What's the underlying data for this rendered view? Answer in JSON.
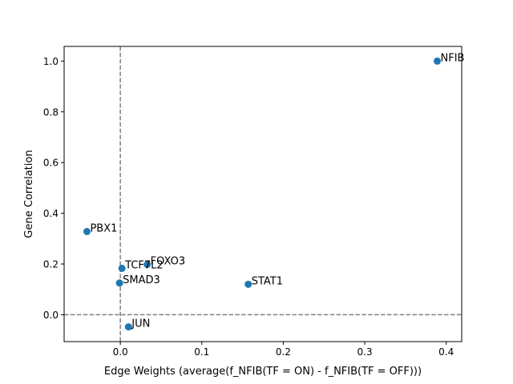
{
  "chart_data": {
    "type": "scatter",
    "title": "",
    "xlabel": "Edge Weights (average(f_NFIB(TF = ON) - f_NFIB(TF = OFF)))",
    "ylabel": "Gene Correlation",
    "xlim": [
      -0.069,
      0.419
    ],
    "ylim": [
      -0.106,
      1.058
    ],
    "xticks": [
      0.0,
      0.1,
      0.2,
      0.3,
      0.4
    ],
    "xtick_labels": [
      "0.0",
      "0.1",
      "0.2",
      "0.3",
      "0.4"
    ],
    "yticks": [
      0.0,
      0.2,
      0.4,
      0.6,
      0.8,
      1.0
    ],
    "ytick_labels": [
      "0.0",
      "0.2",
      "0.4",
      "0.6",
      "0.8",
      "1.0"
    ],
    "grid": false,
    "reference_lines": [
      {
        "orientation": "vertical",
        "value": 0.0,
        "style": "dashed"
      },
      {
        "orientation": "horizontal",
        "value": 0.0,
        "style": "dashed"
      }
    ],
    "marker_color": "#1f77b4",
    "points": [
      {
        "label": "NFIB",
        "x": 0.389,
        "y": 1.0
      },
      {
        "label": "PBX1",
        "x": -0.041,
        "y": 0.328
      },
      {
        "label": "FOXO3",
        "x": 0.033,
        "y": 0.198
      },
      {
        "label": "TCF7L2",
        "x": 0.002,
        "y": 0.183
      },
      {
        "label": "SMAD3",
        "x": -0.001,
        "y": 0.125
      },
      {
        "label": "STAT1",
        "x": 0.157,
        "y": 0.12
      },
      {
        "label": "JUN",
        "x": 0.01,
        "y": -0.048
      }
    ]
  }
}
